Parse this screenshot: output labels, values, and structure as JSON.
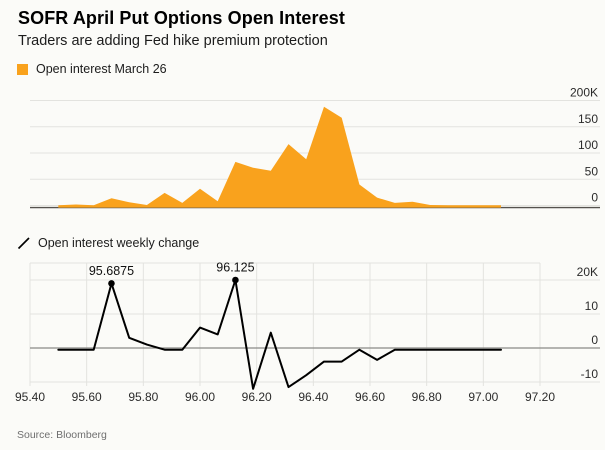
{
  "header": {
    "title": "SOFR April Put Options Open Interest",
    "subtitle": "Traders are adding Fed hike premium protection"
  },
  "source": "Source: Bloomberg",
  "colors": {
    "accent_orange": "#F9A21D",
    "line_black": "#000000",
    "grid": "#E3E3DF",
    "axis_dark": "#55524E",
    "zero_line": "#8A8A86",
    "tick_text": "#2B2B2B",
    "annotation_text": "#111111",
    "background": "#FBFBF8"
  },
  "chart_data": [
    {
      "type": "area",
      "title": "Open interest March 26",
      "units": "K",
      "legend_position": "top-left",
      "grid": "horizontal",
      "xlim": [
        95.4,
        97.2
      ],
      "ylim": [
        0,
        200
      ],
      "yticks": [
        0,
        50,
        100,
        150,
        200
      ],
      "ytick_labels": [
        "0",
        "50",
        "100",
        "150",
        "200K"
      ],
      "x": [
        95.5,
        95.5625,
        95.625,
        95.6875,
        95.75,
        95.8125,
        95.875,
        95.9375,
        96.0,
        96.0625,
        96.125,
        96.1875,
        96.25,
        96.3125,
        96.375,
        96.4375,
        96.5,
        96.5625,
        96.625,
        96.6875,
        96.75,
        96.8125,
        96.875,
        96.9375,
        97.0,
        97.0625
      ],
      "values": [
        0.5,
        2,
        0.5,
        14,
        6,
        1,
        24,
        5,
        32,
        8,
        83,
        72,
        66,
        117,
        88,
        188,
        167,
        40,
        15,
        5,
        7,
        1,
        0.5,
        0.5,
        0.5,
        0.5
      ]
    },
    {
      "type": "line",
      "title": "Open interest weekly change",
      "units": "K",
      "legend_position": "top-left",
      "grid": "both",
      "xlim": [
        95.4,
        97.2
      ],
      "ylim": [
        -15,
        22
      ],
      "yticks": [
        -10,
        0,
        10,
        20
      ],
      "ytick_labels": [
        "-10",
        "0",
        "10",
        "20K"
      ],
      "xticks": [
        95.4,
        95.6,
        95.8,
        96.0,
        96.2,
        96.4,
        96.6,
        96.8,
        97.0,
        97.2
      ],
      "xtick_labels": [
        "95.40",
        "95.60",
        "95.80",
        "96.00",
        "96.20",
        "96.40",
        "96.60",
        "96.80",
        "97.00",
        "97.20"
      ],
      "x": [
        95.5,
        95.5625,
        95.625,
        95.6875,
        95.75,
        95.8125,
        95.875,
        95.9375,
        96.0,
        96.0625,
        96.125,
        96.1875,
        96.25,
        96.3125,
        96.375,
        96.4375,
        96.5,
        96.5625,
        96.625,
        96.6875,
        96.75,
        96.8125,
        96.875,
        96.9375,
        97.0,
        97.0625
      ],
      "values": [
        -0.5,
        -0.5,
        -0.5,
        19,
        3,
        1,
        -0.5,
        -0.5,
        6,
        4,
        20,
        -12,
        4.5,
        -11.5,
        -8,
        -4,
        -4,
        -0.5,
        -3.5,
        -0.5,
        -0.5,
        -0.5,
        -0.5,
        -0.5,
        -0.5,
        -0.5
      ],
      "annotations": [
        {
          "x": 95.6875,
          "label": "95.6875"
        },
        {
          "x": 96.125,
          "label": "96.125"
        }
      ]
    }
  ]
}
